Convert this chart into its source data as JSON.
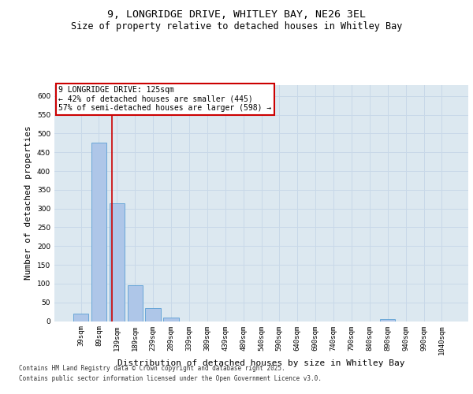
{
  "title_line1": "9, LONGRIDGE DRIVE, WHITLEY BAY, NE26 3EL",
  "title_line2": "Size of property relative to detached houses in Whitley Bay",
  "xlabel": "Distribution of detached houses by size in Whitley Bay",
  "ylabel": "Number of detached properties",
  "categories": [
    "39sqm",
    "89sqm",
    "139sqm",
    "189sqm",
    "239sqm",
    "289sqm",
    "339sqm",
    "389sqm",
    "439sqm",
    "489sqm",
    "540sqm",
    "590sqm",
    "640sqm",
    "690sqm",
    "740sqm",
    "790sqm",
    "840sqm",
    "890sqm",
    "940sqm",
    "990sqm",
    "1040sqm"
  ],
  "values": [
    20,
    475,
    315,
    95,
    35,
    10,
    0,
    0,
    0,
    0,
    0,
    0,
    0,
    0,
    0,
    0,
    0,
    5,
    0,
    0,
    0
  ],
  "bar_color": "#aec6e8",
  "bar_edge_color": "#5a9fd4",
  "vline_color": "#cc0000",
  "vline_pos": 1.72,
  "annotation_text": "9 LONGRIDGE DRIVE: 125sqm\n← 42% of detached houses are smaller (445)\n57% of semi-detached houses are larger (598) →",
  "annotation_box_color": "#cc0000",
  "ylim": [
    0,
    630
  ],
  "yticks": [
    0,
    50,
    100,
    150,
    200,
    250,
    300,
    350,
    400,
    450,
    500,
    550,
    600
  ],
  "grid_color": "#c8d8e8",
  "plot_bg_color": "#dce8f0",
  "footer_line1": "Contains HM Land Registry data © Crown copyright and database right 2025.",
  "footer_line2": "Contains public sector information licensed under the Open Government Licence v3.0.",
  "title_fontsize": 9.5,
  "subtitle_fontsize": 8.5,
  "tick_fontsize": 6.5,
  "label_fontsize": 8,
  "annotation_fontsize": 7,
  "footer_fontsize": 5.5
}
